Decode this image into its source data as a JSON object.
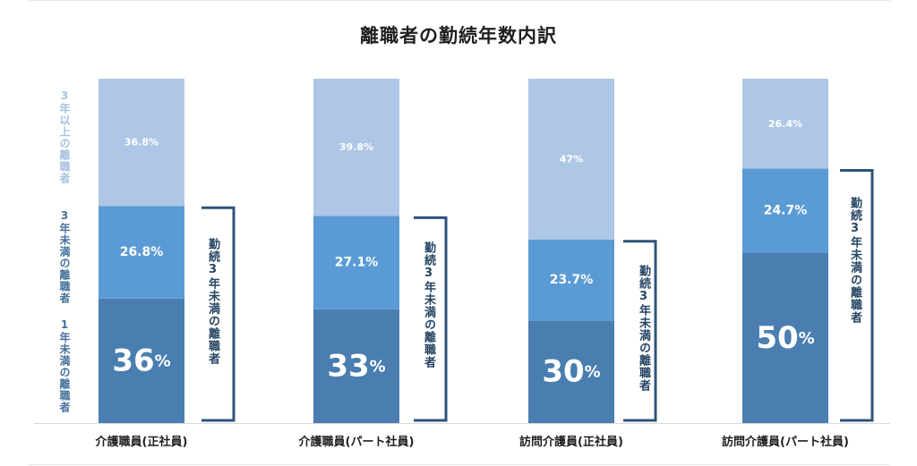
{
  "title": "離職者の勤続年数内訳",
  "legend": {
    "top": "3年以上の離職者",
    "mid": "3年未満の離職者",
    "bottom": "1年未満の離職者"
  },
  "colors": {
    "over3": "#aec7e6",
    "under3": "#5b9bd5",
    "under1": "#4a7eb0",
    "bracket": "#2e5479"
  },
  "chart_data": {
    "type": "bar",
    "stacked": true,
    "categories": [
      "介護職員(正社員)",
      "介護職員(パート社員)",
      "訪問介護員(正社員)",
      "訪問介護員(パート社員)"
    ],
    "series": [
      {
        "name": "1年未満の離職者",
        "values": [
          36,
          33,
          30,
          50
        ],
        "labels": [
          "36%",
          "33%",
          "30%",
          "50%"
        ]
      },
      {
        "name": "3年未満の離職者",
        "values": [
          26.8,
          27.1,
          23.7,
          24.7
        ],
        "labels": [
          "26.8%",
          "27.1%",
          "23.7%",
          "24.7%"
        ]
      },
      {
        "name": "3年以上の離職者",
        "values": [
          36.8,
          39.8,
          47,
          26.4
        ],
        "labels": [
          "36.8%",
          "39.8%",
          "47%",
          "26.4%"
        ]
      }
    ],
    "annotation": "勤続3年未満の離職者",
    "ylim": [
      0,
      100
    ],
    "legend": "left"
  }
}
